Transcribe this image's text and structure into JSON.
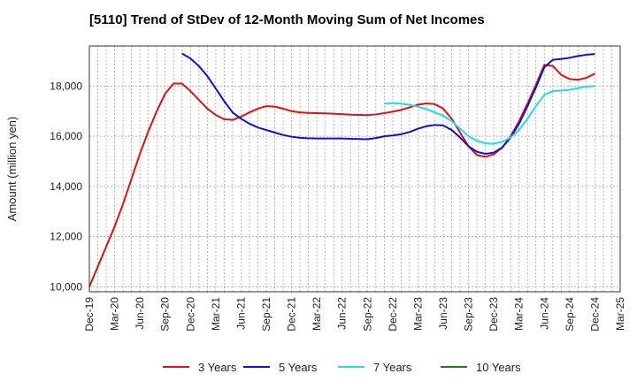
{
  "chart_data": {
    "type": "line",
    "title": "[5110]  Trend of StDev of 12-Month Moving Sum of Net Incomes",
    "ylabel": "Amount (million yen)",
    "xlabel": "",
    "ylim": [
      9800,
      19600
    ],
    "yticks": [
      10000,
      12000,
      14000,
      16000,
      18000
    ],
    "ytick_labels": [
      "10,000",
      "12,000",
      "14,000",
      "16,000",
      "18,000"
    ],
    "x_start": "Dec-19",
    "x_end": "Mar-25",
    "xtick_labels": [
      "Dec-19",
      "Mar-20",
      "Jun-20",
      "Sep-20",
      "Dec-20",
      "Mar-21",
      "Jun-21",
      "Sep-21",
      "Dec-21",
      "Mar-22",
      "Jun-22",
      "Sep-22",
      "Dec-22",
      "Mar-23",
      "Jun-23",
      "Sep-23",
      "Dec-23",
      "Mar-24",
      "Jun-24",
      "Sep-24",
      "Dec-24",
      "Mar-25"
    ],
    "grid": true,
    "legend_position": "bottom",
    "series": [
      {
        "name": "3 Years",
        "color": "#dd1111",
        "points": [
          [
            "Dec-19",
            10000
          ],
          [
            "Jan-20",
            10800
          ],
          [
            "Feb-20",
            11600
          ],
          [
            "Mar-20",
            12400
          ],
          [
            "Apr-20",
            13300
          ],
          [
            "May-20",
            14300
          ],
          [
            "Jun-20",
            15300
          ],
          [
            "Jul-20",
            16200
          ],
          [
            "Aug-20",
            17000
          ],
          [
            "Sep-20",
            17700
          ],
          [
            "Oct-20",
            18100
          ],
          [
            "Nov-20",
            18100
          ],
          [
            "Dec-20",
            17800
          ],
          [
            "Jan-21",
            17450
          ],
          [
            "Feb-21",
            17100
          ],
          [
            "Mar-21",
            16850
          ],
          [
            "Apr-21",
            16680
          ],
          [
            "May-21",
            16650
          ],
          [
            "Jun-21",
            16780
          ],
          [
            "Jul-21",
            16950
          ],
          [
            "Aug-21",
            17100
          ],
          [
            "Sep-21",
            17200
          ],
          [
            "Oct-21",
            17180
          ],
          [
            "Nov-21",
            17100
          ],
          [
            "Dec-21",
            17000
          ],
          [
            "Jan-22",
            16950
          ],
          [
            "Feb-22",
            16930
          ],
          [
            "Mar-22",
            16920
          ],
          [
            "Apr-22",
            16910
          ],
          [
            "May-22",
            16900
          ],
          [
            "Jun-22",
            16880
          ],
          [
            "Jul-22",
            16860
          ],
          [
            "Aug-22",
            16850
          ],
          [
            "Sep-22",
            16840
          ],
          [
            "Oct-22",
            16870
          ],
          [
            "Nov-22",
            16920
          ],
          [
            "Dec-22",
            16980
          ],
          [
            "Jan-23",
            17050
          ],
          [
            "Feb-23",
            17150
          ],
          [
            "Mar-23",
            17260
          ],
          [
            "Apr-23",
            17310
          ],
          [
            "May-23",
            17280
          ],
          [
            "Jun-23",
            17100
          ],
          [
            "Jul-23",
            16700
          ],
          [
            "Aug-23",
            16150
          ],
          [
            "Sep-23",
            15600
          ],
          [
            "Oct-23",
            15250
          ],
          [
            "Nov-23",
            15180
          ],
          [
            "Dec-23",
            15280
          ],
          [
            "Jan-24",
            15550
          ],
          [
            "Feb-24",
            16000
          ],
          [
            "Mar-24",
            16600
          ],
          [
            "Apr-24",
            17300
          ],
          [
            "May-24",
            18050
          ],
          [
            "Jun-24",
            18850
          ],
          [
            "Jul-24",
            18800
          ],
          [
            "Aug-24",
            18450
          ],
          [
            "Sep-24",
            18280
          ],
          [
            "Oct-24",
            18250
          ],
          [
            "Nov-24",
            18330
          ],
          [
            "Dec-24",
            18500
          ]
        ]
      },
      {
        "name": "5 Years",
        "color": "#1111cc",
        "points": [
          [
            "Nov-20",
            19300
          ],
          [
            "Dec-20",
            19100
          ],
          [
            "Jan-21",
            18800
          ],
          [
            "Feb-21",
            18400
          ],
          [
            "Mar-21",
            17900
          ],
          [
            "Apr-21",
            17400
          ],
          [
            "May-21",
            16950
          ],
          [
            "Jun-21",
            16700
          ],
          [
            "Jul-21",
            16500
          ],
          [
            "Aug-21",
            16350
          ],
          [
            "Sep-21",
            16250
          ],
          [
            "Oct-21",
            16150
          ],
          [
            "Nov-21",
            16050
          ],
          [
            "Dec-21",
            15980
          ],
          [
            "Jan-22",
            15940
          ],
          [
            "Feb-22",
            15920
          ],
          [
            "Mar-22",
            15910
          ],
          [
            "Apr-22",
            15910
          ],
          [
            "May-22",
            15910
          ],
          [
            "Jun-22",
            15910
          ],
          [
            "Jul-22",
            15900
          ],
          [
            "Aug-22",
            15890
          ],
          [
            "Sep-22",
            15880
          ],
          [
            "Oct-22",
            15930
          ],
          [
            "Nov-22",
            16000
          ],
          [
            "Dec-22",
            16030
          ],
          [
            "Jan-23",
            16080
          ],
          [
            "Feb-23",
            16170
          ],
          [
            "Mar-23",
            16300
          ],
          [
            "Apr-23",
            16400
          ],
          [
            "May-23",
            16450
          ],
          [
            "Jun-23",
            16430
          ],
          [
            "Jul-23",
            16250
          ],
          [
            "Aug-23",
            15950
          ],
          [
            "Sep-23",
            15600
          ],
          [
            "Oct-23",
            15380
          ],
          [
            "Nov-23",
            15300
          ],
          [
            "Dec-23",
            15350
          ],
          [
            "Jan-24",
            15550
          ],
          [
            "Feb-24",
            15950
          ],
          [
            "Mar-24",
            16500
          ],
          [
            "Apr-24",
            17200
          ],
          [
            "May-24",
            17950
          ],
          [
            "Jun-24",
            18750
          ],
          [
            "Jul-24",
            19050
          ],
          [
            "Aug-24",
            19080
          ],
          [
            "Sep-24",
            19130
          ],
          [
            "Oct-24",
            19200
          ],
          [
            "Nov-24",
            19250
          ],
          [
            "Dec-24",
            19280
          ]
        ]
      },
      {
        "name": "7 Years",
        "color": "#22dddd",
        "points": [
          [
            "Nov-22",
            17300
          ],
          [
            "Dec-22",
            17320
          ],
          [
            "Jan-23",
            17300
          ],
          [
            "Feb-23",
            17250
          ],
          [
            "Mar-23",
            17180
          ],
          [
            "Apr-23",
            17080
          ],
          [
            "May-23",
            16950
          ],
          [
            "Jun-23",
            16820
          ],
          [
            "Jul-23",
            16600
          ],
          [
            "Aug-23",
            16300
          ],
          [
            "Sep-23",
            16000
          ],
          [
            "Oct-23",
            15820
          ],
          [
            "Nov-23",
            15720
          ],
          [
            "Dec-23",
            15700
          ],
          [
            "Jan-24",
            15780
          ],
          [
            "Feb-24",
            15950
          ],
          [
            "Mar-24",
            16250
          ],
          [
            "Apr-24",
            16700
          ],
          [
            "May-24",
            17200
          ],
          [
            "Jun-24",
            17650
          ],
          [
            "Jul-24",
            17800
          ],
          [
            "Aug-24",
            17820
          ],
          [
            "Sep-24",
            17850
          ],
          [
            "Oct-24",
            17920
          ],
          [
            "Nov-24",
            17980
          ],
          [
            "Dec-24",
            18000
          ]
        ]
      },
      {
        "name": "10 Years",
        "color": "#118811",
        "points": []
      }
    ]
  }
}
